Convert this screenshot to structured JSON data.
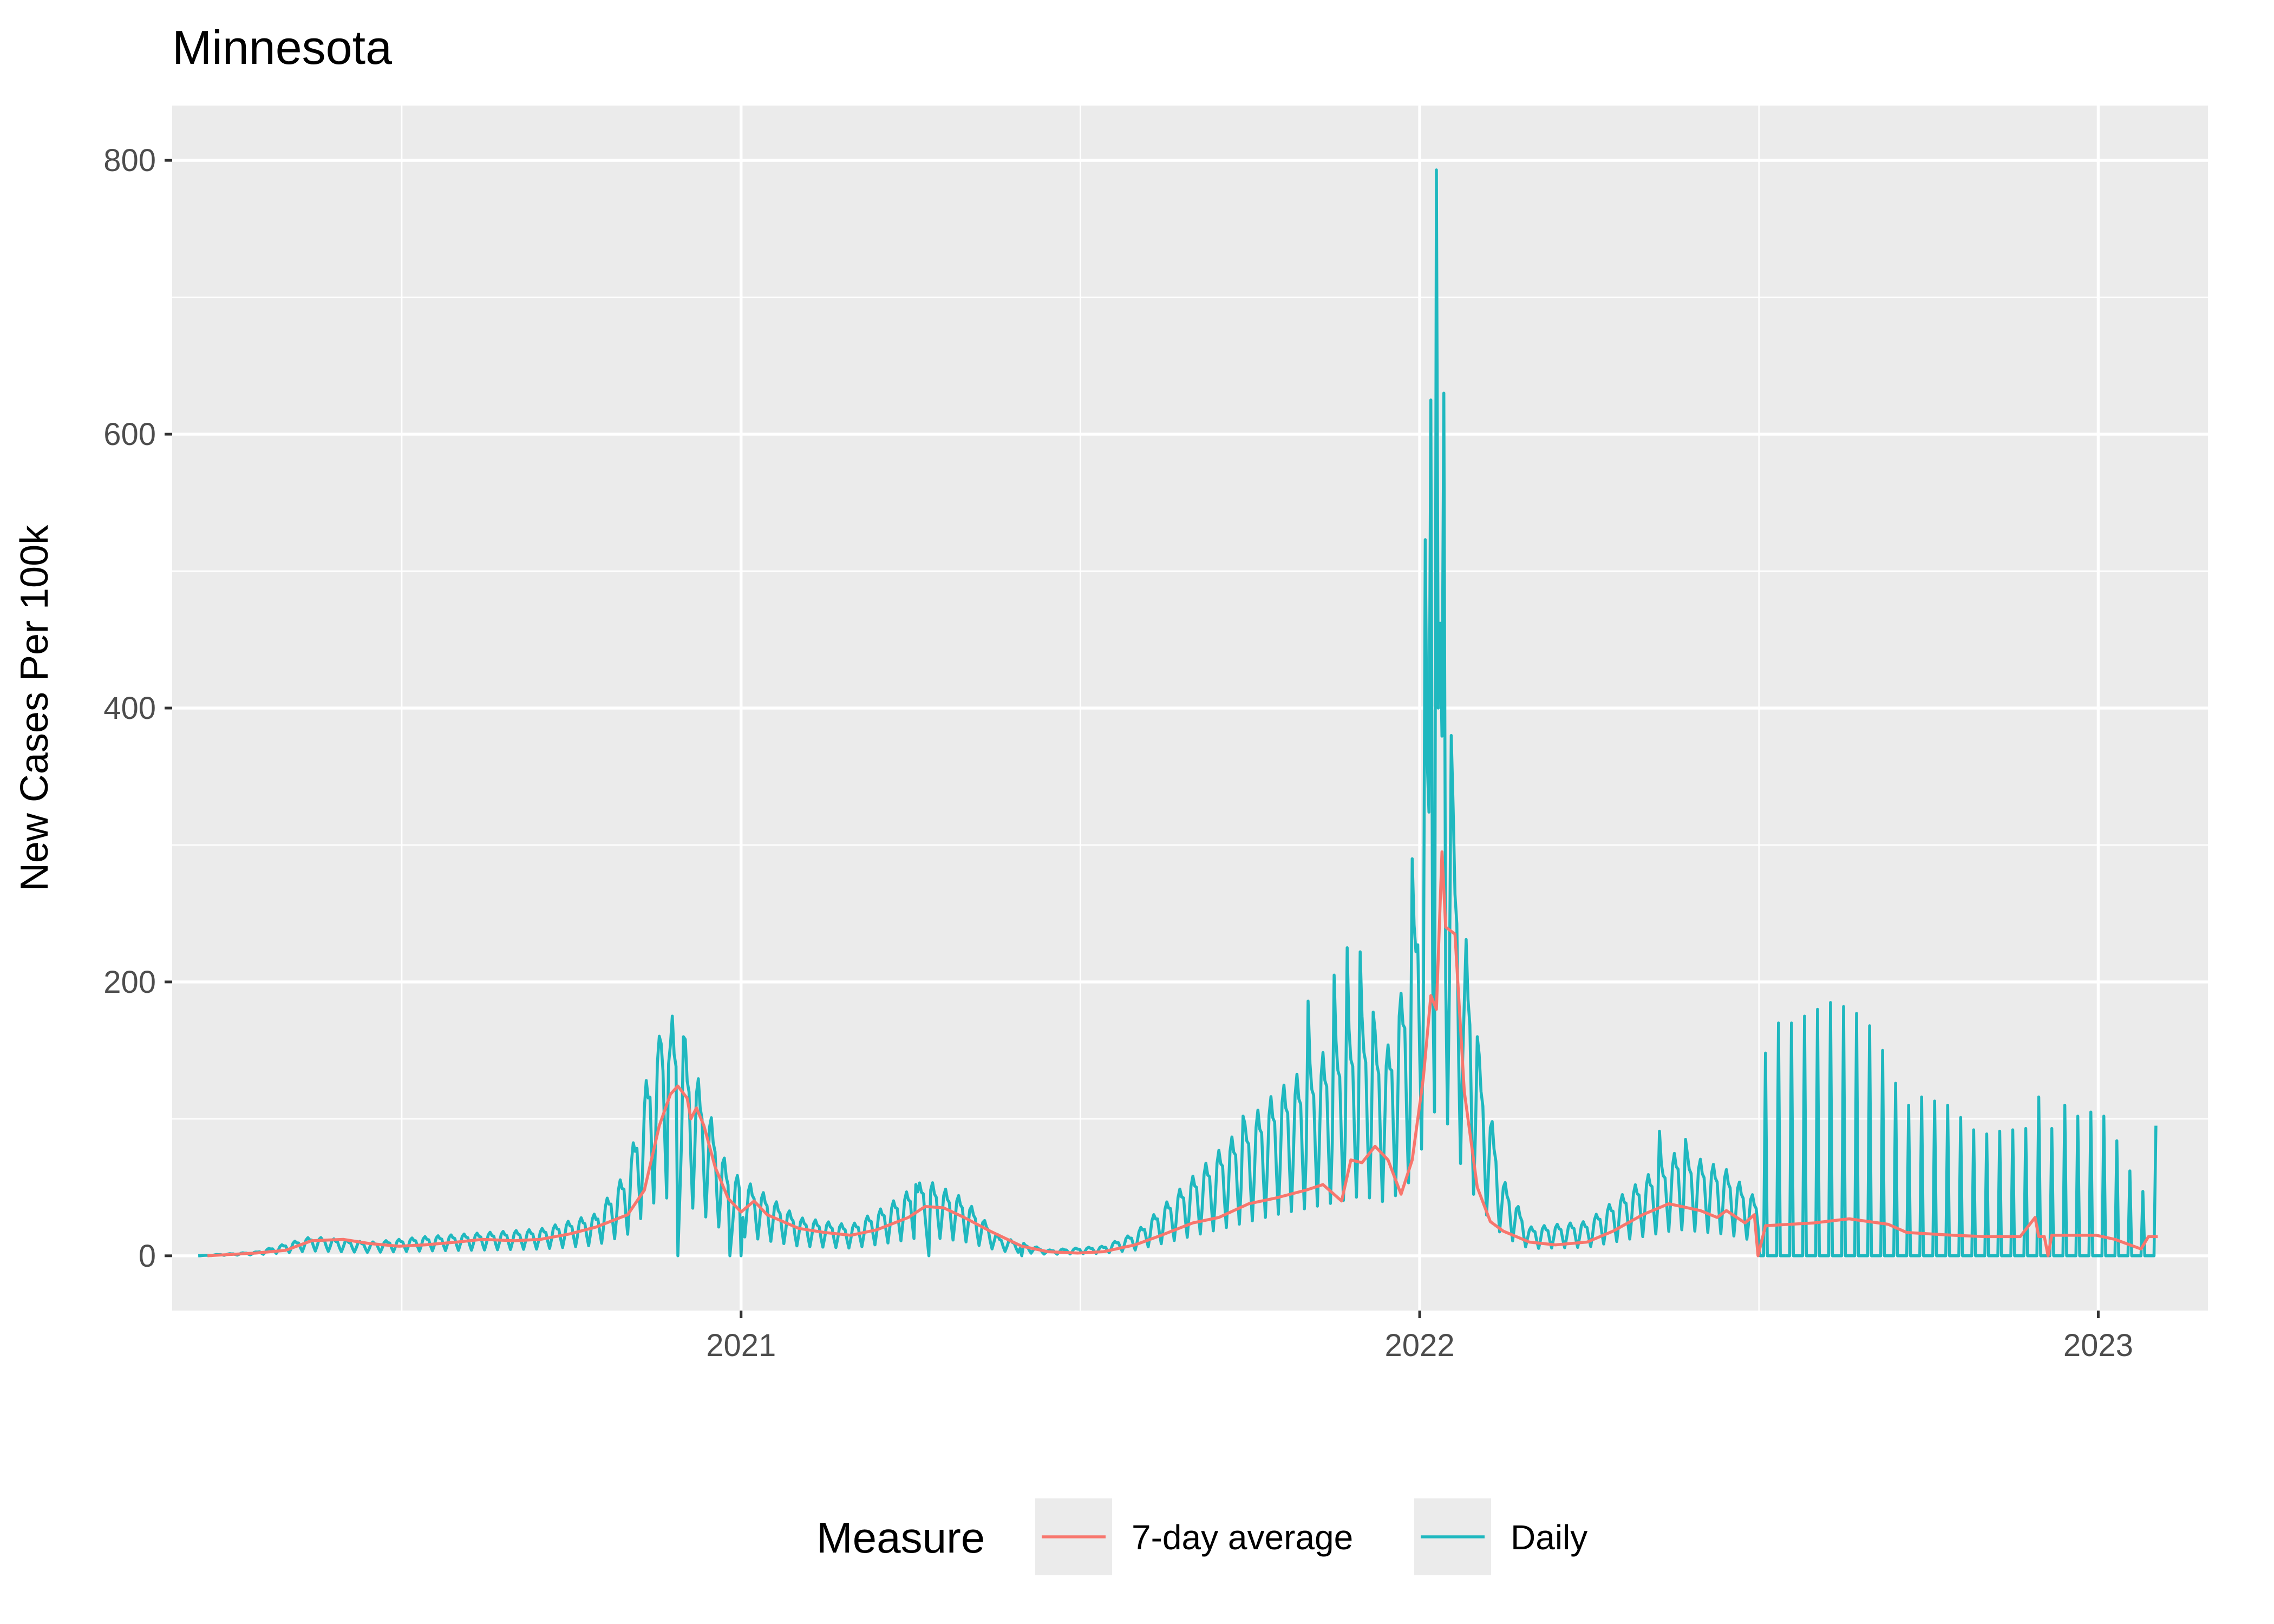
{
  "chart_data": {
    "type": "line",
    "title": "Minnesota",
    "xlabel": "",
    "ylabel": "New Cases Per 100k",
    "x_range": [
      "2020-03-01",
      "2023-03-01"
    ],
    "ylim": [
      -40,
      840
    ],
    "y_ticks": [
      0,
      200,
      400,
      600,
      800
    ],
    "y_tick_labels": [
      "0",
      "200",
      "400",
      "600",
      "800"
    ],
    "x_ticks": [
      "2021-01-01",
      "2022-01-01",
      "2023-01-01"
    ],
    "x_tick_labels": [
      "2021",
      "2022",
      "2023"
    ],
    "grid": true,
    "legend": {
      "title": "Measure",
      "position": "bottom"
    },
    "series": [
      {
        "name": "Daily",
        "color": "#1fb8bf",
        "style": "daily-oscillating",
        "date_start": "2020-03-15",
        "date_end": "2023-02-01",
        "anchors": [
          [
            "2020-03-15",
            0
          ],
          [
            "2020-04-15",
            2
          ],
          [
            "2020-05-15",
            10
          ],
          [
            "2020-06-15",
            7
          ],
          [
            "2020-07-15",
            10
          ],
          [
            "2020-08-15",
            12
          ],
          [
            "2020-09-15",
            14
          ],
          [
            "2020-10-15",
            22
          ],
          [
            "2020-11-01",
            45
          ],
          [
            "2020-11-15",
            110
          ],
          [
            "2020-11-25",
            125
          ],
          [
            "2020-12-10",
            90
          ],
          [
            "2020-12-25",
            45
          ],
          [
            "2021-01-10",
            35
          ],
          [
            "2021-02-01",
            20
          ],
          [
            "2021-03-01",
            16
          ],
          [
            "2021-03-20",
            26
          ],
          [
            "2021-04-10",
            40
          ],
          [
            "2021-05-01",
            30
          ],
          [
            "2021-05-20",
            10
          ],
          [
            "2021-06-15",
            3
          ],
          [
            "2021-07-15",
            5
          ],
          [
            "2021-08-01",
            12
          ],
          [
            "2021-08-20",
            30
          ],
          [
            "2021-09-15",
            55
          ],
          [
            "2021-10-15",
            85
          ],
          [
            "2021-11-15",
            110
          ],
          [
            "2021-12-01",
            125
          ],
          [
            "2021-12-15",
            110
          ],
          [
            "2021-12-28",
            160
          ],
          [
            "2022-01-05",
            260
          ],
          [
            "2022-01-12",
            330
          ],
          [
            "2022-01-20",
            220
          ],
          [
            "2022-02-01",
            110
          ],
          [
            "2022-02-15",
            40
          ],
          [
            "2022-03-01",
            15
          ],
          [
            "2022-04-01",
            18
          ],
          [
            "2022-05-01",
            40
          ],
          [
            "2022-05-20",
            55
          ],
          [
            "2022-06-15",
            45
          ],
          [
            "2022-07-01",
            30
          ]
        ],
        "weekly_values": [
          [
            "2022-07-06",
            148
          ],
          [
            "2022-07-13",
            170
          ],
          [
            "2022-07-20",
            170
          ],
          [
            "2022-07-27",
            175
          ],
          [
            "2022-08-03",
            180
          ],
          [
            "2022-08-10",
            185
          ],
          [
            "2022-08-17",
            182
          ],
          [
            "2022-08-24",
            177
          ],
          [
            "2022-08-31",
            168
          ],
          [
            "2022-09-07",
            150
          ],
          [
            "2022-09-14",
            126
          ],
          [
            "2022-09-21",
            110
          ],
          [
            "2022-09-28",
            116
          ],
          [
            "2022-10-05",
            113
          ],
          [
            "2022-10-12",
            110
          ],
          [
            "2022-10-19",
            101
          ],
          [
            "2022-10-26",
            92
          ],
          [
            "2022-11-02",
            89
          ],
          [
            "2022-11-09",
            91
          ],
          [
            "2022-11-16",
            92
          ],
          [
            "2022-11-23",
            93
          ],
          [
            "2022-11-30",
            116
          ],
          [
            "2022-12-07",
            93
          ],
          [
            "2022-12-14",
            110
          ],
          [
            "2022-12-21",
            102
          ],
          [
            "2022-12-28",
            105
          ],
          [
            "2023-01-04",
            102
          ],
          [
            "2023-01-11",
            84
          ],
          [
            "2023-01-18",
            62
          ],
          [
            "2023-01-25",
            47
          ],
          [
            "2023-02-01",
            95
          ]
        ],
        "spikes": [
          [
            "2020-11-19",
            155
          ],
          [
            "2020-11-23",
            140
          ],
          [
            "2020-12-01",
            160
          ],
          [
            "2020-12-02",
            158
          ],
          [
            "2021-01-01",
            56
          ],
          [
            "2021-04-05",
            52
          ],
          [
            "2021-09-28",
            102
          ],
          [
            "2021-10-19",
            112
          ],
          [
            "2021-11-02",
            186
          ],
          [
            "2021-11-16",
            205
          ],
          [
            "2021-11-23",
            225
          ],
          [
            "2021-11-30",
            222
          ],
          [
            "2021-12-07",
            178
          ],
          [
            "2021-12-21",
            175
          ],
          [
            "2021-12-28",
            290
          ],
          [
            "2022-01-04",
            523
          ],
          [
            "2022-01-07",
            625
          ],
          [
            "2022-01-10",
            793
          ],
          [
            "2022-01-14",
            630
          ],
          [
            "2022-01-18",
            380
          ],
          [
            "2022-01-25",
            185
          ],
          [
            "2022-02-01",
            160
          ],
          [
            "2022-05-10",
            91
          ],
          [
            "2022-05-24",
            85
          ]
        ],
        "zero_dips": [
          "2020-11-28",
          "2020-12-26",
          "2021-01-01",
          "2021-04-12",
          "2021-06-01"
        ]
      },
      {
        "name": "7-day average",
        "color": "#f8766d",
        "points": [
          [
            "2020-03-20",
            0
          ],
          [
            "2020-04-15",
            2
          ],
          [
            "2020-05-01",
            4
          ],
          [
            "2020-05-15",
            11
          ],
          [
            "2020-06-01",
            12
          ],
          [
            "2020-06-15",
            9
          ],
          [
            "2020-07-01",
            7
          ],
          [
            "2020-07-15",
            8
          ],
          [
            "2020-08-01",
            10
          ],
          [
            "2020-08-15",
            12
          ],
          [
            "2020-09-01",
            11
          ],
          [
            "2020-09-15",
            12
          ],
          [
            "2020-10-01",
            16
          ],
          [
            "2020-10-15",
            21
          ],
          [
            "2020-11-01",
            30
          ],
          [
            "2020-11-10",
            48
          ],
          [
            "2020-11-18",
            95
          ],
          [
            "2020-11-24",
            118
          ],
          [
            "2020-11-28",
            124
          ],
          [
            "2020-12-03",
            115
          ],
          [
            "2020-12-05",
            100
          ],
          [
            "2020-12-08",
            108
          ],
          [
            "2020-12-12",
            95
          ],
          [
            "2020-12-18",
            65
          ],
          [
            "2020-12-25",
            42
          ],
          [
            "2021-01-01",
            32
          ],
          [
            "2021-01-08",
            40
          ],
          [
            "2021-01-15",
            30
          ],
          [
            "2021-02-01",
            20
          ],
          [
            "2021-02-15",
            17
          ],
          [
            "2021-03-01",
            15
          ],
          [
            "2021-03-15",
            19
          ],
          [
            "2021-04-01",
            28
          ],
          [
            "2021-04-10",
            36
          ],
          [
            "2021-04-20",
            35
          ],
          [
            "2021-05-01",
            28
          ],
          [
            "2021-05-15",
            18
          ],
          [
            "2021-06-01",
            7
          ],
          [
            "2021-06-15",
            3
          ],
          [
            "2021-07-01",
            2
          ],
          [
            "2021-07-15",
            3
          ],
          [
            "2021-08-01",
            8
          ],
          [
            "2021-08-15",
            15
          ],
          [
            "2021-09-01",
            24
          ],
          [
            "2021-09-15",
            28
          ],
          [
            "2021-10-01",
            38
          ],
          [
            "2021-10-15",
            42
          ],
          [
            "2021-11-01",
            48
          ],
          [
            "2021-11-10",
            52
          ],
          [
            "2021-11-20",
            40
          ],
          [
            "2021-11-25",
            70
          ],
          [
            "2021-12-01",
            68
          ],
          [
            "2021-12-08",
            80
          ],
          [
            "2021-12-15",
            70
          ],
          [
            "2021-12-22",
            45
          ],
          [
            "2021-12-28",
            70
          ],
          [
            "2022-01-03",
            130
          ],
          [
            "2022-01-07",
            190
          ],
          [
            "2022-01-10",
            180
          ],
          [
            "2022-01-13",
            295
          ],
          [
            "2022-01-15",
            240
          ],
          [
            "2022-01-20",
            235
          ],
          [
            "2022-01-25",
            120
          ],
          [
            "2022-02-01",
            50
          ],
          [
            "2022-02-08",
            25
          ],
          [
            "2022-02-15",
            18
          ],
          [
            "2022-03-01",
            10
          ],
          [
            "2022-03-15",
            8
          ],
          [
            "2022-04-01",
            10
          ],
          [
            "2022-04-15",
            18
          ],
          [
            "2022-05-01",
            30
          ],
          [
            "2022-05-15",
            38
          ],
          [
            "2022-06-01",
            33
          ],
          [
            "2022-06-10",
            28
          ],
          [
            "2022-06-15",
            33
          ],
          [
            "2022-06-25",
            24
          ],
          [
            "2022-06-30",
            30
          ],
          [
            "2022-07-02",
            0
          ],
          [
            "2022-07-06",
            22
          ],
          [
            "2022-08-01",
            24
          ],
          [
            "2022-08-20",
            27
          ],
          [
            "2022-09-10",
            23
          ],
          [
            "2022-09-20",
            17
          ],
          [
            "2022-10-15",
            15
          ],
          [
            "2022-11-01",
            14
          ],
          [
            "2022-11-20",
            14
          ],
          [
            "2022-11-28",
            28
          ],
          [
            "2022-11-30",
            14
          ],
          [
            "2022-12-03",
            14
          ],
          [
            "2022-12-05",
            0
          ],
          [
            "2022-12-07",
            15
          ],
          [
            "2022-12-31",
            15
          ],
          [
            "2023-01-10",
            12
          ],
          [
            "2023-01-24",
            5
          ],
          [
            "2023-01-28",
            14
          ],
          [
            "2023-02-02",
            14
          ]
        ]
      }
    ]
  }
}
